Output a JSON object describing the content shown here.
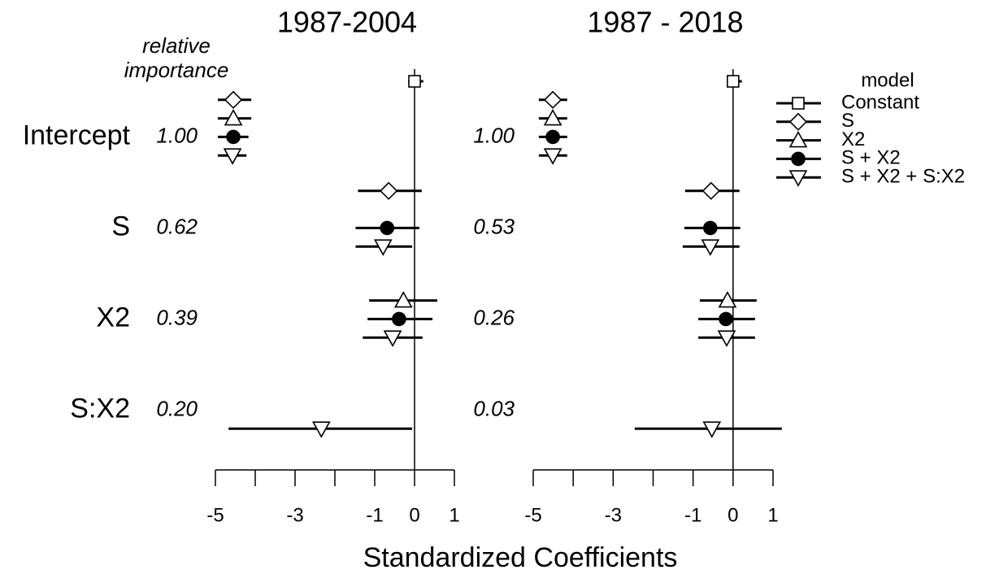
{
  "x_label": "Standardized Coefficients",
  "legend_title": "model",
  "models": [
    {
      "name": "Constant",
      "marker": "square"
    },
    {
      "name": "S",
      "marker": "diamond"
    },
    {
      "name": "X2",
      "marker": "triangle-up"
    },
    {
      "name": "S + X2",
      "marker": "circle-filled"
    },
    {
      "name": "S + X2 + S:X2",
      "marker": "triangle-down"
    }
  ],
  "chart_data": [
    {
      "type": "forest",
      "title": "1987-2004",
      "importance_title": [
        "relative",
        "importance"
      ],
      "categories": [
        "Intercept",
        "S",
        "X2",
        "S:X2"
      ],
      "show_categories": true,
      "importance_labels": [
        "1.00",
        "0.62",
        "0.39",
        "0.20"
      ],
      "xlim": [
        -5,
        1
      ],
      "xticks": [
        -5,
        -3,
        -1,
        0,
        1
      ],
      "minor_xticks": [
        -4,
        -2
      ],
      "ref_line": 0,
      "series": [
        {
          "values": [
            0,
            null,
            null,
            null
          ],
          "lower": [
            -0.16,
            null,
            null,
            null
          ],
          "upper": [
            0.22,
            null,
            null,
            null
          ]
        },
        {
          "values": [
            -4.55,
            -0.65,
            null,
            null
          ],
          "lower": [
            -4.94,
            -1.42,
            null,
            null
          ],
          "upper": [
            -4.1,
            0.18,
            null,
            null
          ]
        },
        {
          "values": [
            -4.55,
            null,
            -0.28,
            null
          ],
          "lower": [
            -4.94,
            null,
            -1.14,
            null
          ],
          "upper": [
            -4.1,
            null,
            0.57,
            null
          ]
        },
        {
          "values": [
            -4.55,
            -0.69,
            -0.39,
            null
          ],
          "lower": [
            -4.94,
            -1.48,
            -1.18,
            null
          ],
          "upper": [
            -4.17,
            0.12,
            0.45,
            null
          ]
        },
        {
          "values": [
            -4.57,
            -0.79,
            -0.55,
            -2.34
          ],
          "lower": [
            -4.94,
            -1.48,
            -1.3,
            -4.67
          ],
          "upper": [
            -4.22,
            -0.06,
            0.2,
            -0.06
          ]
        }
      ]
    },
    {
      "type": "forest",
      "title": "1987 - 2018",
      "categories": [
        "Intercept",
        "S",
        "X2",
        "S:X2"
      ],
      "show_categories": false,
      "importance_labels": [
        "1.00",
        "0.53",
        "0.26",
        "0.03"
      ],
      "xlim": [
        -5,
        1
      ],
      "xticks": [
        -5,
        -3,
        -1,
        0,
        1
      ],
      "minor_xticks": [
        -4,
        -2
      ],
      "ref_line": 0,
      "legend": true,
      "series": [
        {
          "values": [
            0,
            null,
            null,
            null
          ],
          "lower": [
            -0.16,
            null,
            null,
            null
          ],
          "upper": [
            0.22,
            null,
            null,
            null
          ]
        },
        {
          "values": [
            -4.51,
            -0.55,
            null,
            null
          ],
          "lower": [
            -4.86,
            -1.2,
            null,
            null
          ],
          "upper": [
            -4.15,
            0.16,
            null,
            null
          ]
        },
        {
          "values": [
            -4.51,
            null,
            -0.14,
            null
          ],
          "lower": [
            -4.86,
            null,
            -0.83,
            null
          ],
          "upper": [
            -4.15,
            null,
            0.59,
            null
          ]
        },
        {
          "values": [
            -4.51,
            -0.57,
            -0.18,
            null
          ],
          "lower": [
            -4.86,
            -1.22,
            -0.87,
            null
          ],
          "upper": [
            -4.15,
            0.18,
            0.55,
            null
          ]
        },
        {
          "values": [
            -4.51,
            -0.57,
            -0.16,
            -0.53
          ],
          "lower": [
            -4.86,
            -1.26,
            -0.87,
            -2.46
          ],
          "upper": [
            -4.15,
            0.16,
            0.55,
            1.22
          ]
        }
      ]
    }
  ]
}
